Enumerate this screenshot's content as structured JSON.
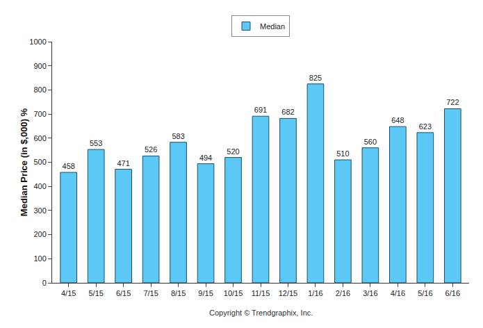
{
  "chart_data": {
    "type": "bar",
    "y_label": "Median Price (in $,000) %",
    "categories": [
      "4/15",
      "5/15",
      "6/15",
      "7/15",
      "8/15",
      "9/15",
      "10/15",
      "11/15",
      "12/15",
      "1/16",
      "2/16",
      "3/16",
      "4/16",
      "5/16",
      "6/16"
    ],
    "series": [
      {
        "name": "Median",
        "color": "#5bc8f5",
        "values": [
          458,
          553,
          471,
          526,
          583,
          494,
          520,
          691,
          682,
          825,
          510,
          560,
          648,
          623,
          722
        ]
      }
    ],
    "ylim": [
      0,
      1000
    ],
    "yticks": [
      0,
      100,
      200,
      300,
      400,
      500,
      600,
      700,
      800,
      900,
      1000
    ],
    "grid": false,
    "legend": "top",
    "data_labels": true,
    "annotations": [
      "Copyright © Trendgraphix, Inc."
    ]
  }
}
